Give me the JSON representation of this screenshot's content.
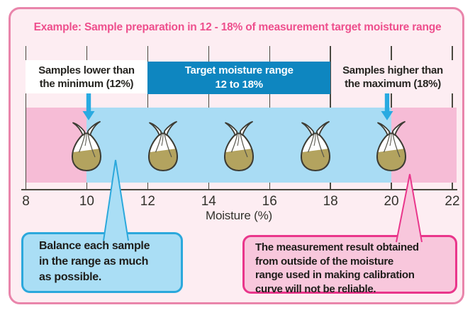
{
  "title": "Example: Sample preparation in 12 - 18% of measurement target moisture range",
  "labels": {
    "low_samples": "Samples lower than\nthe minimum (12%)",
    "high_samples": "Samples higher than\nthe maximum (18%)",
    "target_range": "Target moisture range\n12 to 18%"
  },
  "axis": {
    "title": "Moisture (%)",
    "ticks": [
      "8",
      "10",
      "12",
      "14",
      "16",
      "18",
      "20",
      "22"
    ],
    "tick_values": [
      8,
      10,
      12,
      14,
      16,
      18,
      20,
      22
    ],
    "min": 8,
    "max": 22
  },
  "diagram": {
    "sample_positions": [
      10,
      12.5,
      15,
      17.5,
      20
    ],
    "target_range": [
      12,
      18
    ],
    "sample_band_range": [
      10,
      20
    ],
    "low_marker": 10,
    "high_marker": 20
  },
  "callouts": {
    "balance": "Balance each sample\nin the range as much\nas possible.",
    "warning": "The measurement result obtained\nfrom outside of the moisture\nrange used in making calibration\ncurve will not be reliable."
  },
  "colors": {
    "frame_border": "#e985ab",
    "page_bg": "#fdedf2",
    "title_text": "#ee4f8d",
    "band_pink": "#f6bcd6",
    "band_blue": "#a9dcf4",
    "header_blue": "#0e86c0",
    "arrow_blue": "#29aae1",
    "callout_blue_bg": "#aadef5",
    "callout_blue_border": "#2ba8dc",
    "callout_pink_bg": "#f8c7dc",
    "callout_pink_border": "#e9368b",
    "bag_fill": "#b3a35f",
    "text_dark": "#262521"
  }
}
